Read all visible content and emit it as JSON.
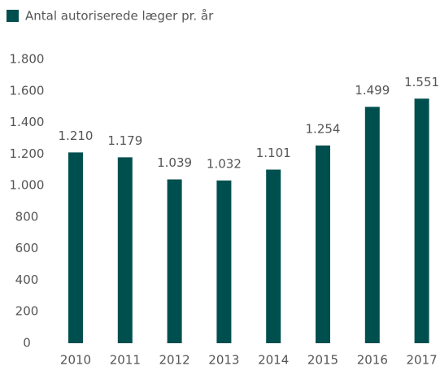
{
  "chart_data": {
    "type": "bar",
    "legend": "Antal autoriserede læger pr. år",
    "categories": [
      "2010",
      "2011",
      "2012",
      "2013",
      "2014",
      "2015",
      "2016",
      "2017"
    ],
    "values": [
      1210,
      1179,
      1039,
      1032,
      1101,
      1254,
      1499,
      1551
    ],
    "value_labels": [
      "1.210",
      "1.179",
      "1.039",
      "1.032",
      "1.101",
      "1.254",
      "1.499",
      "1.551"
    ],
    "color": "#004f4f",
    "ylim": [
      0,
      1800
    ],
    "yticks": [
      0,
      200,
      400,
      600,
      800,
      {
        "value": 1000,
        "label": "1.000"
      },
      {
        "value": 1200,
        "label": "1.200"
      },
      {
        "value": 1400,
        "label": "1.400"
      },
      {
        "value": 1600,
        "label": "1.600"
      },
      {
        "value": 1800,
        "label": "1.800"
      }
    ],
    "grid": false
  }
}
